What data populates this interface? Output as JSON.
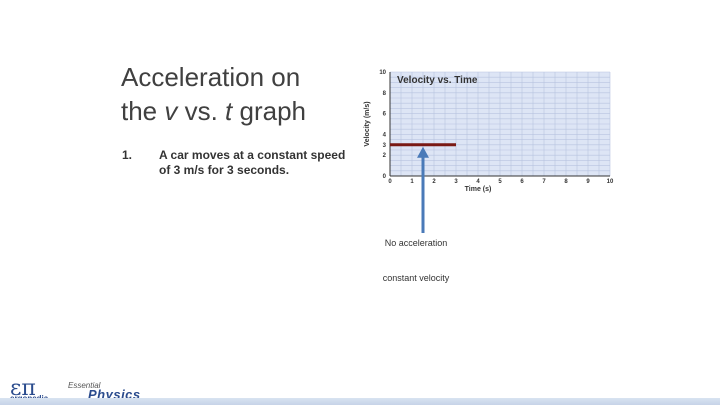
{
  "slide": {
    "title": "Acceleration on the v vs. t graph",
    "title_line1": "Acceleration on",
    "title_line2_pre": "the ",
    "title_line2_v": "v",
    "title_line2_mid": " vs. ",
    "title_line2_t": "t",
    "title_line2_post": " graph",
    "bullet_number": "1.",
    "bullet_text": "A car moves at a constant speed of 3 m/s for 3 seconds.",
    "annotation_1": "No acceleration",
    "annotation_2": "constant velocity"
  },
  "logo": {
    "symbol": "επ",
    "name": "ergopedia",
    "essential": "Essential",
    "physics": "Physics"
  },
  "colors": {
    "plot_bg": "#dde5f5",
    "grid": "#b7c3df",
    "segment": "#7a1a14",
    "arrow": "#4a7ab8"
  },
  "chart_data": {
    "type": "line",
    "title": "Velocity vs. Time",
    "xlabel": "Time (s)",
    "ylabel": "Velocity (m/s)",
    "xlim": [
      0,
      10
    ],
    "ylim": [
      0,
      10
    ],
    "x_ticks": [
      0,
      1,
      2,
      3,
      4,
      5,
      6,
      7,
      8,
      9,
      10
    ],
    "y_ticks": [
      0,
      2,
      3,
      4,
      6,
      8,
      10
    ],
    "grid": true,
    "series": [
      {
        "x": [
          0,
          3
        ],
        "y": [
          3,
          3
        ]
      }
    ],
    "annotation_arrow_at": {
      "x": 1.5,
      "y": 3
    }
  }
}
